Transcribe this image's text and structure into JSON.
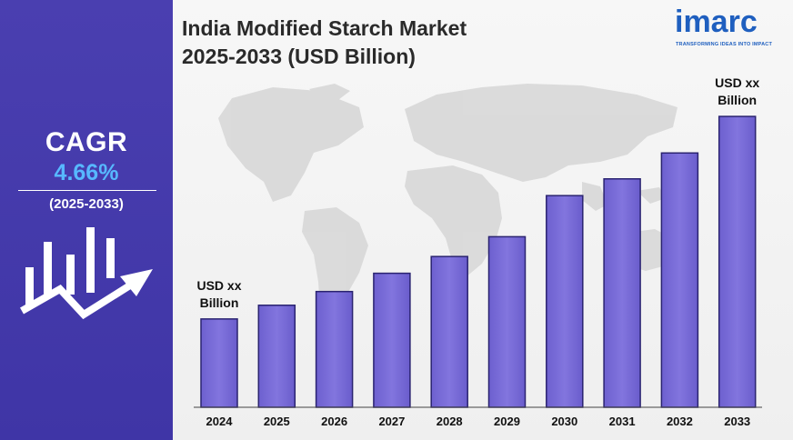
{
  "sidebar": {
    "cagr_label": "CAGR",
    "cagr_value": "4.66%",
    "cagr_period": "(2025-2033)",
    "icon": "growth-chart-arrow-icon",
    "bg_color": "#4a3fb0",
    "value_color": "#57b8ff"
  },
  "header": {
    "title_line1": "India Modified Starch Market",
    "title_line2": "2025-2033 (USD Billion)"
  },
  "logo": {
    "word": "imarc",
    "tagline": "TRANSFORMING IDEAS INTO IMPACT",
    "color": "#1f5fbf"
  },
  "chart_data": {
    "type": "bar",
    "categories": [
      "2024",
      "2025",
      "2026",
      "2027",
      "2028",
      "2029",
      "2030",
      "2031",
      "2032",
      "2033"
    ],
    "values": [
      29,
      33.5,
      38,
      44,
      49.5,
      56,
      69.5,
      75,
      83.5,
      95.5
    ],
    "first_label": "USD xx Billion",
    "last_label": "USD xx Billion",
    "ylim": [
      0,
      100
    ],
    "bar_color": "#7b6fd8",
    "background": "world-map-silhouette"
  }
}
